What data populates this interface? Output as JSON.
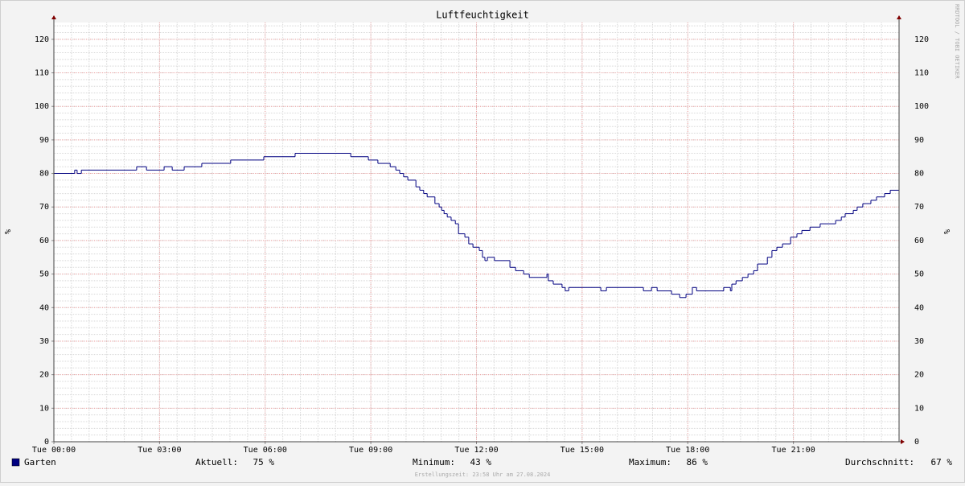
{
  "chart_data": {
    "type": "line",
    "title": "Luftfeuchtigkeit",
    "y_label": "%",
    "watermark": "RRDTOOL / TOBI OETIKER",
    "footer": "Erstellungszeit: 23:58 Uhr am 27.08.2024",
    "step": true,
    "xlim": [
      0,
      24
    ],
    "xticks": [
      {
        "value": 0,
        "label": "Tue 00:00"
      },
      {
        "value": 3,
        "label": "Tue 03:00"
      },
      {
        "value": 6,
        "label": "Tue 06:00"
      },
      {
        "value": 9,
        "label": "Tue 09:00"
      },
      {
        "value": 12,
        "label": "Tue 12:00"
      },
      {
        "value": 15,
        "label": "Tue 15:00"
      },
      {
        "value": 18,
        "label": "Tue 18:00"
      },
      {
        "value": 21,
        "label": "Tue 21:00"
      }
    ],
    "ylim": [
      0,
      125
    ],
    "yticks": [
      0,
      10,
      20,
      30,
      40,
      50,
      60,
      70,
      80,
      90,
      100,
      110,
      120
    ],
    "grid": true,
    "x_minor_step": 0.5,
    "y_minor_step": 2,
    "x": [
      0,
      0.59,
      0.66,
      0.78,
      2.35,
      2.63,
      3.13,
      3.36,
      3.7,
      4.2,
      5.02,
      5.96,
      6.85,
      8.43,
      8.93,
      9.2,
      9.55,
      9.71,
      9.82,
      9.93,
      10.05,
      10.28,
      10.39,
      10.5,
      10.6,
      10.82,
      10.94,
      11.01,
      11.08,
      11.17,
      11.28,
      11.4,
      11.49,
      11.67,
      11.78,
      11.9,
      12.08,
      12.17,
      12.24,
      12.31,
      12.51,
      12.95,
      13.11,
      13.34,
      13.5,
      14.0,
      14.04,
      14.18,
      14.43,
      14.52,
      14.62,
      15.53,
      15.69,
      16.74,
      16.97,
      17.13,
      17.54,
      17.77,
      17.95,
      18.13,
      18.25,
      19.02,
      19.21,
      19.25,
      19.37,
      19.55,
      19.71,
      19.87,
      19.98,
      20.26,
      20.39,
      20.53,
      20.69,
      20.92,
      21.1,
      21.24,
      21.47,
      21.76,
      22.2,
      22.36,
      22.47,
      22.7,
      22.81,
      22.97,
      23.2,
      23.36,
      23.59,
      23.75
    ],
    "series": [
      {
        "name": "Garten",
        "color": "#000080",
        "values": [
          80,
          81,
          80,
          81,
          82,
          81,
          82,
          81,
          82,
          83,
          84,
          85,
          86,
          85,
          84,
          83,
          82,
          81,
          80,
          79,
          78,
          76,
          75,
          74,
          73,
          71,
          70,
          69,
          68,
          67,
          66,
          65,
          62,
          61,
          59,
          58,
          57,
          55,
          54,
          55,
          54,
          52,
          51,
          50,
          49,
          50,
          48,
          47,
          46,
          45,
          46,
          45,
          46,
          45,
          46,
          45,
          44,
          43,
          44,
          46,
          45,
          46,
          45,
          47,
          48,
          49,
          50,
          51,
          53,
          55,
          57,
          58,
          59,
          61,
          62,
          63,
          64,
          65,
          66,
          67,
          68,
          69,
          70,
          71,
          72,
          73,
          74,
          75
        ]
      }
    ],
    "stats": [
      {
        "label": "Aktuell:",
        "value": "75 %"
      },
      {
        "label": "Minimum:",
        "value": "43 %"
      },
      {
        "label": "Maximum:",
        "value": "86 %"
      },
      {
        "label": "Durchschnitt:",
        "value": "67 %"
      }
    ]
  }
}
